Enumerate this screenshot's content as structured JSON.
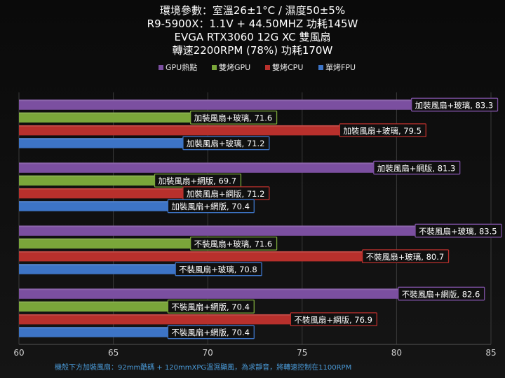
{
  "chart_data": {
    "type": "bar",
    "orientation": "horizontal",
    "title_lines": [
      "環境參數：室溫26±1°C / 濕度50±5%",
      "R9-5900X：1.1V + 44.50MHZ 功耗145W",
      "EVGA RTX3060 12G XC 雙風扇",
      "轉速2200RPM (78%) 功耗170W"
    ],
    "legend_position": "top",
    "xlim": [
      60,
      85
    ],
    "x_ticks": [
      "60",
      "65",
      "70",
      "75",
      "80",
      "85"
    ],
    "gridlines": true,
    "series": [
      {
        "name": "GPU熱點",
        "color": "#7b4fa0"
      },
      {
        "name": "雙烤GPU",
        "color": "#7aa63a"
      },
      {
        "name": "雙烤CPU",
        "color": "#b8302c"
      },
      {
        "name": "單烤FPU",
        "color": "#3d74c6"
      }
    ],
    "groups": [
      {
        "label": "加裝風扇+玻璃",
        "values": [
          83.3,
          71.6,
          79.5,
          71.2
        ],
        "labels": [
          "加裝風扇+玻璃, 83.3",
          "加裝風扇+玻璃, 71.6",
          "加裝風扇+玻璃, 79.5",
          "加裝風扇+玻璃, 71.2"
        ]
      },
      {
        "label": "加裝風扇+網版",
        "values": [
          81.3,
          69.7,
          71.2,
          70.4
        ],
        "labels": [
          "加裝風扇+網版, 81.3",
          "加裝風扇+網版, 69.7",
          "加裝風扇+網版, 71.2",
          "加裝風扇+網版, 70.4"
        ]
      },
      {
        "label": "不裝風扇+玻璃",
        "values": [
          83.5,
          71.6,
          80.7,
          70.8
        ],
        "labels": [
          "不裝風扇+玻璃, 83.5",
          "不裝風扇+玻璃, 71.6",
          "不裝風扇+玻璃, 80.7",
          "不裝風扇+玻璃, 70.8"
        ]
      },
      {
        "label": "不裝風扇+網版",
        "values": [
          82.6,
          70.4,
          76.9,
          70.4
        ],
        "labels": [
          "不裝風扇+網版, 82.6",
          "不裝風扇+網版, 70.4",
          "不裝風扇+網版, 76.9",
          "不裝風扇+網版, 70.4"
        ]
      }
    ],
    "footnote": "機殼下方加裝風扇：92mm酷碼 + 120mmXPG溫濕顯風，為求靜音，將轉速控制在1100RPM"
  }
}
